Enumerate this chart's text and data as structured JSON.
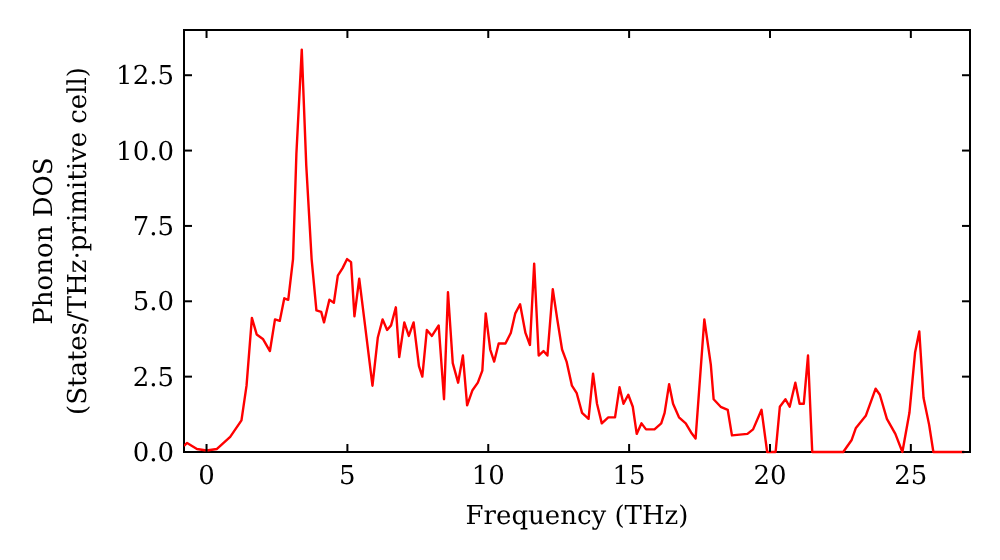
{
  "chart_data": {
    "type": "line",
    "xlabel": "Frequency (THz)",
    "ylabel": "Phonon DOS\n(States/THz·primitive cell)",
    "xlim": [
      -0.8,
      27.1
    ],
    "ylim": [
      0,
      14
    ],
    "xticks": [
      0,
      5,
      10,
      15,
      20,
      25
    ],
    "yticks": [
      {
        "value": 0,
        "label": "0.0"
      },
      {
        "value": 2.5,
        "label": "2.5"
      },
      {
        "value": 5,
        "label": "5.0"
      },
      {
        "value": 7.5,
        "label": "7.5"
      },
      {
        "value": 10,
        "label": "10.0"
      },
      {
        "value": 12.5,
        "label": "12.5"
      }
    ],
    "grid": false,
    "marker": "none",
    "line_style": "solid",
    "series": [
      {
        "color": "#ff0000",
        "x": [
          -0.8,
          -0.69,
          -0.34,
          0,
          0.37,
          0.84,
          1.24,
          1.42,
          1.61,
          1.78,
          2.0,
          2.25,
          2.43,
          2.6,
          2.76,
          2.9,
          3.07,
          3.19,
          3.38,
          3.54,
          3.73,
          3.9,
          4.07,
          4.17,
          4.36,
          4.52,
          4.66,
          4.83,
          4.99,
          5.13,
          5.25,
          5.42,
          5.6,
          5.89,
          6.08,
          6.25,
          6.41,
          6.55,
          6.72,
          6.84,
          7.02,
          7.18,
          7.35,
          7.54,
          7.66,
          7.82,
          8.0,
          8.24,
          8.43,
          8.57,
          8.74,
          8.93,
          9.1,
          9.25,
          9.44,
          9.63,
          9.79,
          9.91,
          10.07,
          10.21,
          10.37,
          10.61,
          10.8,
          10.96,
          11.13,
          11.32,
          11.48,
          11.63,
          11.79,
          11.96,
          12.1,
          12.29,
          12.45,
          12.62,
          12.78,
          12.97,
          13.14,
          13.33,
          13.56,
          13.72,
          13.86,
          14.03,
          14.26,
          14.5,
          14.66,
          14.8,
          14.97,
          15.13,
          15.27,
          15.44,
          15.6,
          15.9,
          16.14,
          16.26,
          16.42,
          16.56,
          16.77,
          17.01,
          17.2,
          17.36,
          17.67,
          17.9,
          18.0,
          18.25,
          18.5,
          18.65,
          19.2,
          19.4,
          19.7,
          19.9,
          20.2,
          20.35,
          20.55,
          20.7,
          20.9,
          21.05,
          21.2,
          21.35,
          21.5,
          22.6,
          22.9,
          23.05,
          23.4,
          23.75,
          23.9,
          24.15,
          24.45,
          24.7,
          24.95,
          25.15,
          25.3,
          25.45,
          25.65,
          25.8,
          26.9
        ],
        "values": [
          0.2,
          0.3,
          0.1,
          0.05,
          0.1,
          0.5,
          1.05,
          2.2,
          4.45,
          3.9,
          3.75,
          3.35,
          4.4,
          4.35,
          5.1,
          5.05,
          6.4,
          9.9,
          13.35,
          9.5,
          6.4,
          4.7,
          4.65,
          4.3,
          5.05,
          4.95,
          5.85,
          6.1,
          6.4,
          6.3,
          4.5,
          5.75,
          4.4,
          2.2,
          3.8,
          4.4,
          4.05,
          4.2,
          4.8,
          3.15,
          4.3,
          3.85,
          4.3,
          2.85,
          2.5,
          4.05,
          3.85,
          4.2,
          1.75,
          5.3,
          2.95,
          2.3,
          3.2,
          1.55,
          2.05,
          2.3,
          2.7,
          4.6,
          3.4,
          3.0,
          3.6,
          3.6,
          3.95,
          4.6,
          4.9,
          3.95,
          3.55,
          6.25,
          3.2,
          3.35,
          3.2,
          5.4,
          4.4,
          3.4,
          3.0,
          2.2,
          1.95,
          1.3,
          1.1,
          2.6,
          1.6,
          0.95,
          1.15,
          1.15,
          2.15,
          1.6,
          1.9,
          1.5,
          0.6,
          0.95,
          0.75,
          0.75,
          0.95,
          1.3,
          2.25,
          1.6,
          1.15,
          0.95,
          0.65,
          0.45,
          4.4,
          2.9,
          1.75,
          1.5,
          1.4,
          0.55,
          0.6,
          0.75,
          1.4,
          0,
          0,
          1.5,
          1.75,
          1.5,
          2.3,
          1.6,
          1.6,
          3.2,
          0,
          0,
          0.4,
          0.8,
          1.2,
          2.1,
          1.9,
          1.1,
          0.6,
          0,
          1.3,
          3.3,
          4.0,
          1.8,
          0.9,
          0,
          0
        ]
      }
    ]
  }
}
